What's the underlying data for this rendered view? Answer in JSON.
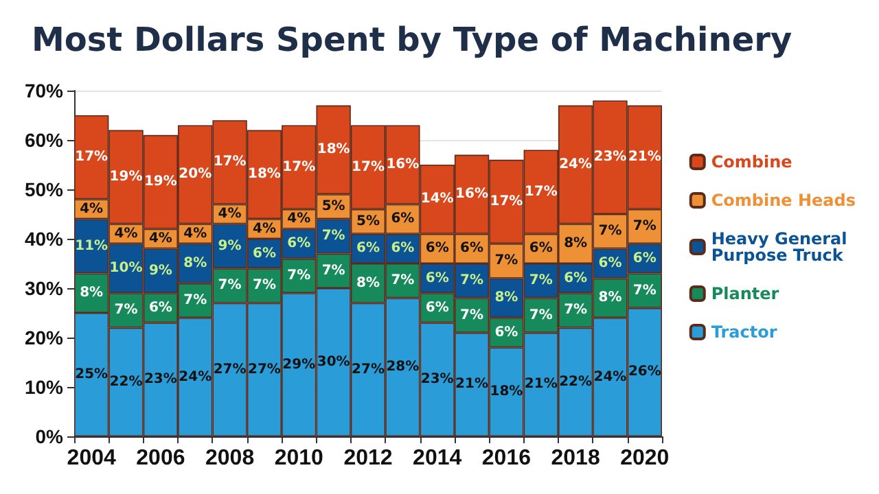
{
  "chart_data": {
    "type": "bar",
    "title": "Most Dollars Spent by Type of Machinery",
    "stacked": true,
    "grid": "y",
    "legend": "right",
    "categories": [
      "2004",
      null,
      "2006",
      null,
      "2008",
      null,
      "2010",
      null,
      "2012",
      null,
      "2014",
      null,
      "2016",
      null,
      "2018",
      null,
      "2020"
    ],
    "ylim": [
      0,
      70
    ],
    "yticks": [
      {
        "value": 0,
        "label": "0%"
      },
      {
        "value": 10,
        "label": "10%"
      },
      {
        "value": 20,
        "label": "20%"
      },
      {
        "value": 30,
        "label": "30%"
      },
      {
        "value": 40,
        "label": "40%"
      },
      {
        "value": 50,
        "label": "50%"
      },
      {
        "value": 60,
        "label": "60%"
      },
      {
        "value": 70,
        "label": "70%"
      }
    ],
    "series": [
      {
        "name": "Tractor",
        "color": "#2a9dd8",
        "values": [
          25,
          22,
          23,
          24,
          27,
          27,
          29,
          30,
          27,
          28,
          23,
          21,
          18,
          21,
          22,
          24,
          26
        ],
        "value_labels": [
          "25%",
          "22%",
          "23%",
          "24%",
          "27%",
          "27%",
          "29%",
          "30%",
          "27%",
          "28%",
          "23%",
          "21%",
          "18%",
          "21%",
          "22%",
          "24%",
          "26%"
        ]
      },
      {
        "name": "Planter",
        "color": "#178a5c",
        "values": [
          8,
          7,
          6,
          7,
          7,
          7,
          7,
          7,
          8,
          7,
          6,
          7,
          6,
          7,
          7,
          8,
          7
        ],
        "value_labels": [
          "8%",
          "7%",
          "6%",
          "7%",
          "7%",
          "7%",
          "7%",
          "7%",
          "8%",
          "7%",
          "6%",
          "7%",
          "6%",
          "7%",
          "7%",
          "8%",
          "7%"
        ]
      },
      {
        "name": "Heavy General Purpose Truck",
        "color": "#0b5394",
        "values": [
          11,
          10,
          9,
          8,
          9,
          6,
          6,
          7,
          6,
          6,
          6,
          7,
          8,
          7,
          6,
          6,
          6
        ],
        "value_labels": [
          "11%",
          "10%",
          "9%",
          "8%",
          "9%",
          "6%",
          "6%",
          "7%",
          "6%",
          "6%",
          "6%",
          "7%",
          "8%",
          "7%",
          "6%",
          "6%",
          "6%"
        ]
      },
      {
        "name": "Combine Heads",
        "color": "#ee9136",
        "values": [
          4,
          4,
          4,
          4,
          4,
          4,
          4,
          5,
          5,
          6,
          6,
          6,
          7,
          6,
          8,
          7,
          7
        ],
        "value_labels": [
          "4%",
          "4%",
          "4%",
          "4%",
          "4%",
          "4%",
          "4%",
          "5%",
          "5%",
          "6%",
          "6%",
          "6%",
          "7%",
          "6%",
          "8%",
          "7%",
          "7%"
        ]
      },
      {
        "name": "Combine",
        "color": "#d9481c",
        "values": [
          17,
          19,
          19,
          20,
          17,
          18,
          17,
          18,
          17,
          16,
          14,
          16,
          17,
          17,
          24,
          23,
          21
        ],
        "value_labels": [
          "17%",
          "19%",
          "19%",
          "20%",
          "17%",
          "18%",
          "17%",
          "18%",
          "17%",
          "16%",
          "14%",
          "16%",
          "17%",
          "17%",
          "24%",
          "23%",
          "21%"
        ]
      }
    ]
  }
}
